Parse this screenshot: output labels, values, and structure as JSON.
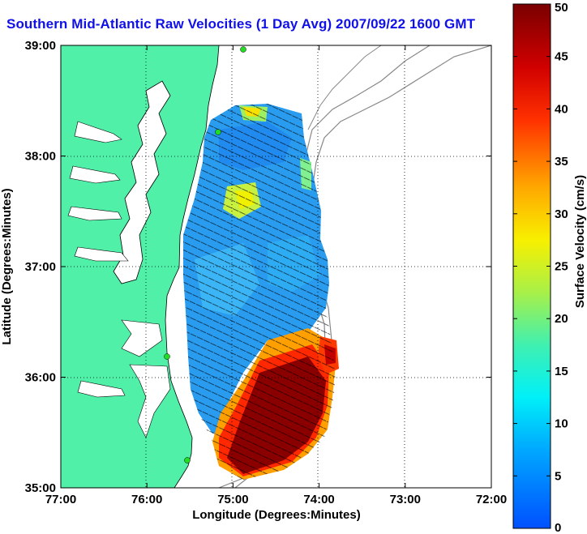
{
  "title": "Southern Mid-Atlantic Raw Velocities (1 Day Avg) 2007/09/22 1600 GMT",
  "map": {
    "x_axis": {
      "label": "Longitude (Degrees:Minutes)",
      "ticks": [
        "77:00",
        "76:00",
        "75:00",
        "74:00",
        "73:00",
        "72:00"
      ]
    },
    "y_axis": {
      "label": "Latitude (Degrees:Minutes)",
      "ticks": [
        "39:00",
        "38:00",
        "37:00",
        "36:00",
        "35:00"
      ]
    },
    "grid": "dotted",
    "land_color": "#50f0a8",
    "water_color": "#ffffff"
  },
  "colorbar": {
    "label": "Surface Velocity (cm/s)",
    "ticks": [
      "50",
      "45",
      "40",
      "35",
      "30",
      "25",
      "20",
      "15",
      "10",
      "5",
      "0"
    ],
    "min": 0,
    "max": 50,
    "colormap": "jet"
  }
}
